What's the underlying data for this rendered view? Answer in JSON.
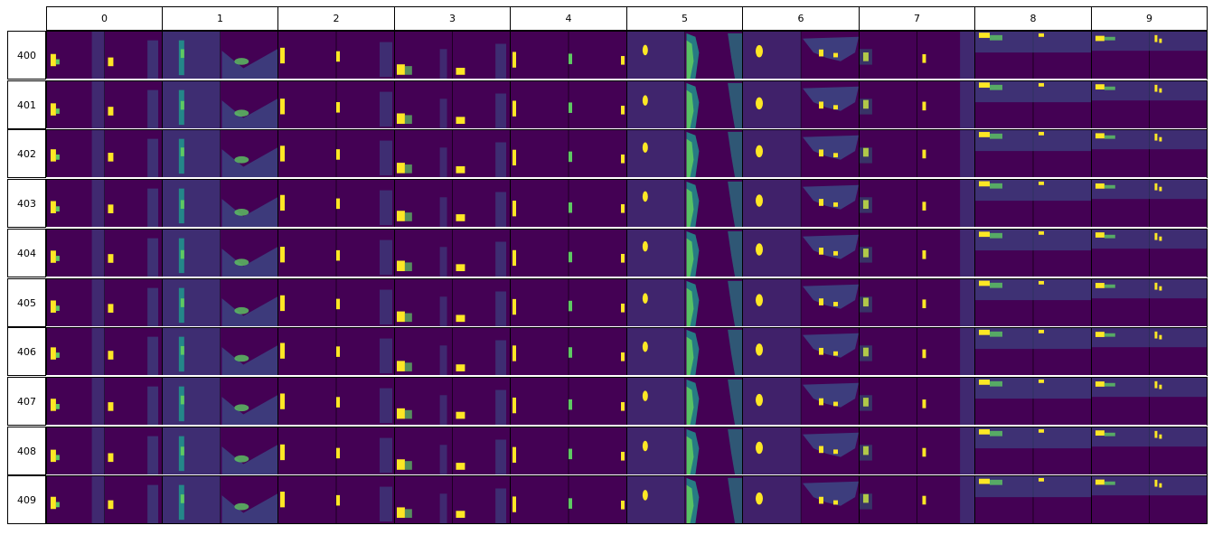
{
  "columns": [
    "0",
    "1",
    "2",
    "3",
    "4",
    "5",
    "6",
    "7",
    "8",
    "9"
  ],
  "rows": [
    "400",
    "401",
    "402",
    "403",
    "404",
    "405",
    "406",
    "407",
    "408",
    "409"
  ],
  "colors": {
    "background": "#440154",
    "mid_dark": "#3b528b",
    "mid": "#21918c",
    "mid_light": "#5ec962",
    "bright": "#fde725",
    "separator": "#ffffff",
    "border": "#000000"
  }
}
